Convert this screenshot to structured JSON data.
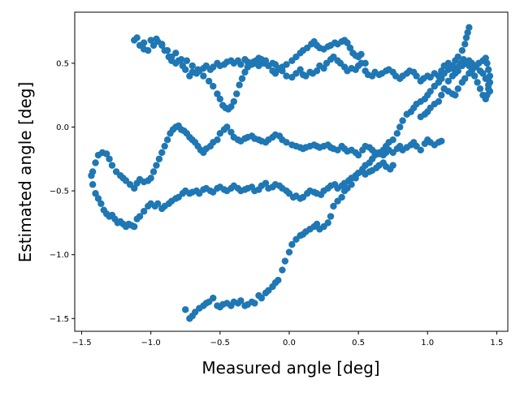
{
  "chart_data": {
    "type": "scatter",
    "title": "",
    "xlabel": "Measured angle [deg]",
    "ylabel": "Estimated angle [deg]",
    "xlim": [
      -1.55,
      1.58
    ],
    "ylim": [
      -1.6,
      0.9
    ],
    "xticks": [
      -1.5,
      -1.0,
      -0.5,
      0.0,
      0.5,
      1.0,
      1.5
    ],
    "xtick_labels": [
      "−1.5",
      "−1.0",
      "−0.5",
      "0.0",
      "0.5",
      "1.0",
      "1.5"
    ],
    "yticks": [
      -1.5,
      -1.0,
      -0.5,
      0.0,
      0.5
    ],
    "ytick_labels": [
      "−1.5",
      "−1.0",
      "−0.5",
      "0.0",
      "0.5"
    ],
    "grid": false,
    "marker_color": "#1f77b4",
    "series": [
      {
        "x": [
          -1.12,
          -1.08,
          -1.05,
          -1.02,
          -0.98,
          -0.95,
          -0.92,
          -0.9,
          -0.87,
          -0.85,
          -0.82,
          -0.8,
          -0.77,
          -0.75,
          -0.72,
          -0.7,
          -0.67,
          -0.65,
          -0.62,
          -0.6,
          -0.57,
          -0.55,
          -0.52,
          -0.5,
          -0.47,
          -0.45,
          -0.42,
          -0.4,
          -0.37,
          -0.35,
          -0.32,
          -0.3,
          -0.27,
          -0.25,
          -0.22,
          -0.2,
          -0.17,
          -0.15,
          -0.12,
          -0.1,
          -0.07,
          -0.05,
          -0.02,
          0.02,
          0.05,
          0.08,
          0.1,
          0.12,
          0.15,
          0.17,
          0.2,
          0.22,
          0.25,
          0.27,
          0.3,
          0.32,
          0.35,
          0.37,
          0.4,
          0.42,
          0.45,
          0.48,
          0.5,
          0.52,
          0.55,
          0.57,
          0.6,
          0.62,
          0.65,
          0.67,
          0.7,
          0.72,
          0.75,
          0.77,
          0.8,
          0.82,
          0.85,
          0.87,
          0.9,
          0.92,
          0.95,
          0.97,
          1.0,
          1.02,
          1.05,
          1.08,
          1.1,
          1.12,
          1.15,
          1.18,
          1.2,
          1.22,
          1.25,
          1.27,
          1.3,
          1.32,
          1.35,
          1.38,
          1.4,
          1.42,
          1.44,
          1.45
        ],
        "y": [
          0.68,
          0.64,
          0.61,
          0.6,
          0.64,
          0.67,
          0.65,
          0.6,
          0.55,
          0.52,
          0.5,
          0.52,
          0.48,
          0.45,
          0.4,
          0.43,
          0.42,
          0.44,
          0.46,
          0.48,
          0.45,
          0.47,
          0.5,
          0.48,
          0.49,
          0.51,
          0.52,
          0.5,
          0.52,
          0.49,
          0.53,
          0.51,
          0.49,
          0.5,
          0.48,
          0.5,
          0.52,
          0.48,
          0.5,
          0.49,
          0.46,
          0.44,
          0.4,
          0.39,
          0.42,
          0.45,
          0.41,
          0.4,
          0.43,
          0.42,
          0.44,
          0.48,
          0.46,
          0.5,
          0.53,
          0.55,
          0.52,
          0.5,
          0.47,
          0.44,
          0.46,
          0.45,
          0.48,
          0.5,
          0.44,
          0.41,
          0.4,
          0.43,
          0.41,
          0.42,
          0.44,
          0.45,
          0.43,
          0.4,
          0.38,
          0.4,
          0.42,
          0.44,
          0.43,
          0.4,
          0.36,
          0.38,
          0.4,
          0.39,
          0.42,
          0.4,
          0.44,
          0.48,
          0.5,
          0.46,
          0.42,
          0.44,
          0.48,
          0.5,
          0.52,
          0.5,
          0.47,
          0.44,
          0.42,
          0.38,
          0.33,
          0.28
        ]
      },
      {
        "x": [
          -1.1,
          -1.05,
          -1.0,
          -0.96,
          -0.92,
          -0.88,
          -0.85,
          -0.82,
          -0.78,
          -0.74,
          -0.7,
          -0.66,
          -0.62,
          -0.58,
          -0.55,
          -0.52,
          -0.5,
          -0.48,
          -0.46,
          -0.44,
          -0.42,
          -0.4,
          -0.38,
          -0.36,
          -0.34,
          -0.32,
          -0.3,
          -0.28,
          -0.26,
          -0.24,
          -0.22,
          -0.2,
          -0.18,
          -0.15,
          -0.12,
          -0.1,
          -0.08,
          -0.05,
          -0.02,
          0.02,
          0.05,
          0.08,
          0.1,
          0.13,
          0.16,
          0.18,
          0.2,
          0.22,
          0.25,
          0.28,
          0.3,
          0.33,
          0.35,
          0.38,
          0.4,
          0.42,
          0.44,
          0.46,
          0.48,
          0.5,
          0.52,
          0.55
        ],
        "y": [
          0.7,
          0.66,
          0.68,
          0.69,
          0.64,
          0.6,
          0.55,
          0.58,
          0.53,
          0.52,
          0.48,
          0.45,
          0.4,
          0.36,
          0.32,
          0.26,
          0.22,
          0.17,
          0.15,
          0.14,
          0.16,
          0.2,
          0.26,
          0.33,
          0.38,
          0.43,
          0.47,
          0.5,
          0.51,
          0.52,
          0.54,
          0.53,
          0.5,
          0.48,
          0.44,
          0.42,
          0.45,
          0.47,
          0.49,
          0.52,
          0.55,
          0.58,
          0.6,
          0.62,
          0.65,
          0.67,
          0.64,
          0.62,
          0.61,
          0.63,
          0.64,
          0.66,
          0.65,
          0.67,
          0.68,
          0.66,
          0.62,
          0.58,
          0.56,
          0.55,
          0.57,
          0.5
        ]
      },
      {
        "x": [
          -1.42,
          -1.4,
          -1.38,
          -1.35,
          -1.32,
          -1.3,
          -1.28,
          -1.25,
          -1.22,
          -1.2,
          -1.18,
          -1.15,
          -1.12,
          -1.1,
          -1.08,
          -1.05,
          -1.02,
          -1.0,
          -0.98,
          -0.96,
          -0.94,
          -0.92,
          -0.9,
          -0.88,
          -0.86,
          -0.84,
          -0.82,
          -0.8,
          -0.78,
          -0.76,
          -0.74,
          -0.72,
          -0.7,
          -0.68,
          -0.66,
          -0.64,
          -0.62,
          -0.6,
          -0.57,
          -0.55,
          -0.52,
          -0.5,
          -0.47,
          -0.45,
          -0.42,
          -0.4,
          -0.37,
          -0.35,
          -0.32,
          -0.3,
          -0.27,
          -0.25,
          -0.22,
          -0.2,
          -0.17,
          -0.15,
          -0.12,
          -0.1,
          -0.07,
          -0.05,
          -0.02,
          0.02,
          0.05,
          0.08,
          0.1,
          0.12,
          0.15,
          0.18,
          0.2,
          0.22,
          0.25,
          0.28,
          0.3,
          0.32,
          0.35,
          0.38,
          0.4,
          0.42,
          0.45,
          0.48,
          0.5,
          0.53,
          0.55,
          0.58,
          0.6,
          0.62,
          0.65,
          0.68,
          0.7,
          0.72,
          0.75,
          0.78,
          0.8,
          0.82,
          0.85,
          0.88,
          0.9,
          0.92,
          0.95,
          0.98,
          1.0,
          1.02,
          1.05,
          1.08,
          1.1
        ],
        "y": [
          -0.35,
          -0.28,
          -0.22,
          -0.2,
          -0.21,
          -0.25,
          -0.3,
          -0.35,
          -0.38,
          -0.4,
          -0.42,
          -0.45,
          -0.48,
          -0.44,
          -0.41,
          -0.43,
          -0.42,
          -0.4,
          -0.35,
          -0.3,
          -0.25,
          -0.2,
          -0.15,
          -0.1,
          -0.05,
          -0.02,
          0.0,
          0.01,
          -0.02,
          -0.03,
          -0.05,
          -0.08,
          -0.1,
          -0.12,
          -0.15,
          -0.18,
          -0.2,
          -0.17,
          -0.15,
          -0.12,
          -0.1,
          -0.05,
          -0.02,
          0.0,
          -0.04,
          -0.08,
          -0.1,
          -0.11,
          -0.09,
          -0.08,
          -0.07,
          -0.09,
          -0.1,
          -0.11,
          -0.12,
          -0.1,
          -0.08,
          -0.06,
          -0.07,
          -0.1,
          -0.12,
          -0.14,
          -0.15,
          -0.16,
          -0.17,
          -0.16,
          -0.15,
          -0.14,
          -0.15,
          -0.16,
          -0.15,
          -0.14,
          -0.16,
          -0.17,
          -0.18,
          -0.15,
          -0.17,
          -0.19,
          -0.18,
          -0.2,
          -0.22,
          -0.18,
          -0.15,
          -0.16,
          -0.18,
          -0.2,
          -0.21,
          -0.22,
          -0.2,
          -0.18,
          -0.2,
          -0.17,
          -0.15,
          -0.18,
          -0.16,
          -0.14,
          -0.12,
          -0.15,
          -0.18,
          -0.13,
          -0.1,
          -0.12,
          -0.14,
          -0.12,
          -0.11
        ]
      },
      {
        "x": [
          -1.43,
          -1.42,
          -1.4,
          -1.38,
          -1.36,
          -1.34,
          -1.32,
          -1.3,
          -1.28,
          -1.26,
          -1.24,
          -1.22,
          -1.2,
          -1.18,
          -1.16,
          -1.14,
          -1.12,
          -1.1,
          -1.08,
          -1.05,
          -1.02,
          -1.0,
          -0.97,
          -0.95,
          -0.92,
          -0.9,
          -0.87,
          -0.85,
          -0.82,
          -0.8,
          -0.77,
          -0.75,
          -0.72,
          -0.7,
          -0.67,
          -0.65,
          -0.62,
          -0.6,
          -0.57,
          -0.55,
          -0.52,
          -0.5,
          -0.47,
          -0.45,
          -0.42,
          -0.4,
          -0.37,
          -0.35,
          -0.32,
          -0.3,
          -0.27,
          -0.25,
          -0.22,
          -0.2,
          -0.17,
          -0.15,
          -0.12,
          -0.1,
          -0.07,
          -0.05,
          -0.02,
          0.0,
          0.03,
          0.05,
          0.08,
          0.1,
          0.13,
          0.15,
          0.18,
          0.2,
          0.23,
          0.25,
          0.28,
          0.3,
          0.33,
          0.35,
          0.38,
          0.4,
          0.43,
          0.45,
          0.48,
          0.5,
          0.53,
          0.55,
          0.58,
          0.6,
          0.63,
          0.65,
          0.68,
          0.7,
          0.73,
          0.75
        ],
        "y": [
          -0.38,
          -0.45,
          -0.52,
          -0.56,
          -0.6,
          -0.65,
          -0.68,
          -0.7,
          -0.69,
          -0.72,
          -0.75,
          -0.74,
          -0.76,
          -0.78,
          -0.76,
          -0.77,
          -0.78,
          -0.72,
          -0.7,
          -0.66,
          -0.62,
          -0.6,
          -0.62,
          -0.6,
          -0.64,
          -0.62,
          -0.6,
          -0.58,
          -0.56,
          -0.55,
          -0.52,
          -0.5,
          -0.52,
          -0.51,
          -0.5,
          -0.52,
          -0.49,
          -0.48,
          -0.5,
          -0.51,
          -0.48,
          -0.47,
          -0.49,
          -0.5,
          -0.48,
          -0.46,
          -0.48,
          -0.5,
          -0.49,
          -0.48,
          -0.47,
          -0.5,
          -0.49,
          -0.46,
          -0.44,
          -0.48,
          -0.47,
          -0.45,
          -0.46,
          -0.48,
          -0.5,
          -0.52,
          -0.55,
          -0.54,
          -0.56,
          -0.55,
          -0.52,
          -0.5,
          -0.51,
          -0.52,
          -0.53,
          -0.5,
          -0.48,
          -0.46,
          -0.45,
          -0.48,
          -0.46,
          -0.44,
          -0.42,
          -0.4,
          -0.38,
          -0.36,
          -0.35,
          -0.37,
          -0.35,
          -0.34,
          -0.32,
          -0.3,
          -0.28,
          -0.31,
          -0.33,
          -0.3
        ]
      },
      {
        "x": [
          -0.75,
          -0.72,
          -0.7,
          -0.68,
          -0.65,
          -0.62,
          -0.6,
          -0.58,
          -0.55,
          -0.52,
          -0.5,
          -0.48,
          -0.45,
          -0.42,
          -0.4,
          -0.37,
          -0.35,
          -0.32,
          -0.3,
          -0.27,
          -0.25,
          -0.22,
          -0.2,
          -0.17,
          -0.15,
          -0.12,
          -0.1,
          -0.08,
          -0.05,
          -0.03,
          0.0,
          0.02,
          0.05,
          0.08,
          0.1,
          0.12,
          0.15,
          0.18,
          0.2,
          0.22,
          0.25,
          0.28,
          0.3,
          0.32,
          0.35,
          0.38,
          0.4,
          0.42,
          0.45,
          0.48,
          0.5,
          0.53,
          0.55,
          0.58,
          0.6,
          0.62,
          0.65,
          0.68,
          0.7,
          0.72,
          0.75,
          0.78,
          0.8,
          0.82,
          0.85,
          0.88,
          0.9,
          0.92,
          0.95,
          0.98,
          1.0,
          1.02,
          1.05,
          1.08,
          1.1,
          1.12,
          1.15,
          1.18,
          1.2,
          1.22,
          1.25,
          1.27,
          1.28,
          1.29,
          1.3
        ],
        "y": [
          -1.43,
          -1.5,
          -1.48,
          -1.45,
          -1.42,
          -1.4,
          -1.38,
          -1.37,
          -1.34,
          -1.4,
          -1.41,
          -1.39,
          -1.38,
          -1.4,
          -1.37,
          -1.38,
          -1.36,
          -1.4,
          -1.39,
          -1.37,
          -1.38,
          -1.32,
          -1.34,
          -1.3,
          -1.28,
          -1.25,
          -1.22,
          -1.2,
          -1.12,
          -1.05,
          -0.98,
          -0.92,
          -0.88,
          -0.85,
          -0.84,
          -0.82,
          -0.8,
          -0.78,
          -0.76,
          -0.8,
          -0.78,
          -0.75,
          -0.7,
          -0.62,
          -0.58,
          -0.55,
          -0.5,
          -0.48,
          -0.45,
          -0.4,
          -0.36,
          -0.33,
          -0.3,
          -0.28,
          -0.25,
          -0.22,
          -0.2,
          -0.18,
          -0.15,
          -0.12,
          -0.1,
          -0.05,
          0.0,
          0.05,
          0.1,
          0.12,
          0.15,
          0.18,
          0.2,
          0.22,
          0.25,
          0.28,
          0.32,
          0.35,
          0.38,
          0.42,
          0.45,
          0.48,
          0.52,
          0.55,
          0.6,
          0.65,
          0.7,
          0.74,
          0.78
        ]
      },
      {
        "x": [
          1.05,
          1.08,
          1.1,
          1.12,
          1.15,
          1.18,
          1.2,
          1.22,
          1.25,
          1.27,
          1.3,
          1.32,
          1.35,
          1.37,
          1.4,
          1.42,
          1.43,
          1.44,
          1.45,
          1.45,
          1.44,
          1.43,
          1.42,
          1.4,
          1.38,
          1.36,
          1.34,
          1.32,
          1.3,
          1.28,
          1.26,
          1.24,
          1.22,
          1.2,
          1.18,
          1.15,
          1.12,
          1.1,
          1.08,
          1.05,
          1.02,
          1.0,
          0.98,
          0.95
        ],
        "y": [
          0.32,
          0.35,
          0.38,
          0.3,
          0.28,
          0.26,
          0.25,
          0.3,
          0.35,
          0.38,
          0.42,
          0.45,
          0.48,
          0.5,
          0.52,
          0.54,
          0.5,
          0.45,
          0.4,
          0.35,
          0.3,
          0.25,
          0.22,
          0.25,
          0.3,
          0.35,
          0.4,
          0.44,
          0.48,
          0.5,
          0.53,
          0.5,
          0.47,
          0.44,
          0.4,
          0.36,
          0.3,
          0.25,
          0.2,
          0.18,
          0.15,
          0.12,
          0.1,
          0.08
        ]
      }
    ]
  }
}
